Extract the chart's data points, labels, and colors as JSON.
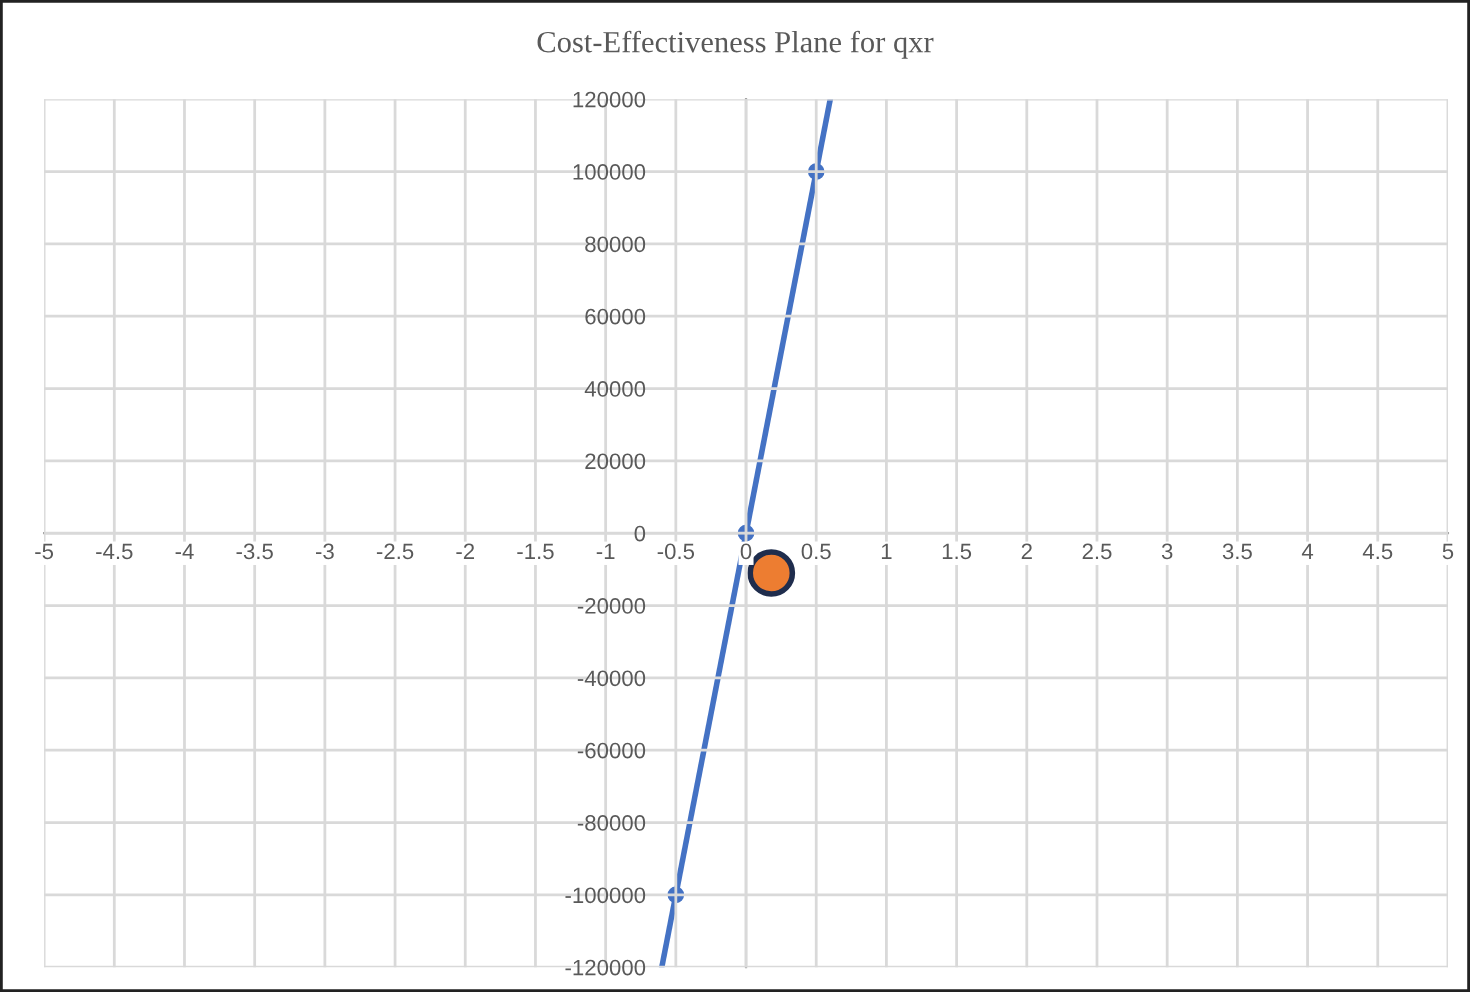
{
  "chart_data": {
    "type": "line",
    "title": "Cost-Effectiveness Plane for qxr",
    "series": [
      {
        "color": "#4472c4",
        "x": [
          -0.6,
          0.6
        ],
        "values": [
          -120000,
          120000
        ],
        "marker": "none"
      },
      {
        "type": "scatter",
        "color": "#4472c4",
        "x": [
          -0.5,
          0,
          0.5
        ],
        "values": [
          -100000,
          0,
          100000
        ],
        "marker": "circle"
      },
      {
        "type": "bubble",
        "color": "#ed7d31",
        "x": [
          0.18
        ],
        "values": [
          -11000
        ],
        "marker": "circle"
      }
    ],
    "xlim": [
      -5,
      5
    ],
    "xticks": [
      -5,
      -4.5,
      -4,
      -3.5,
      -3,
      -2.5,
      -2,
      -1.5,
      -1,
      -0.5,
      0,
      0.5,
      1,
      1.5,
      2,
      2.5,
      3,
      3.5,
      4,
      4.5,
      5
    ],
    "ylim": [
      -120000,
      120000
    ],
    "yticks": [
      -120000,
      -100000,
      -80000,
      -60000,
      -40000,
      -20000,
      0,
      20000,
      40000,
      60000,
      80000,
      100000,
      120000
    ],
    "grid": true,
    "legend": false
  }
}
